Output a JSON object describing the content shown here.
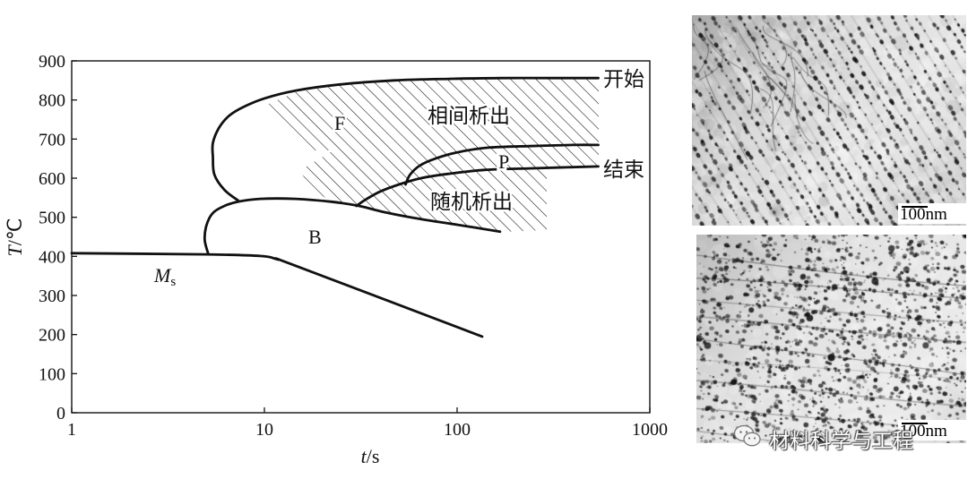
{
  "chart_data": {
    "type": "line",
    "xscale": "log",
    "xlim": [
      1,
      1000
    ],
    "ylim": [
      0,
      900
    ],
    "xticks": [
      1,
      10,
      100,
      1000
    ],
    "yticks": [
      0,
      100,
      200,
      300,
      400,
      500,
      600,
      700,
      800,
      900
    ],
    "grid": false,
    "xlabel": {
      "symbol": "t",
      "unit": "/s"
    },
    "ylabel": {
      "symbol": "T",
      "unit": "/℃"
    },
    "curves": [
      {
        "label": "开始",
        "points": [
          [
            7.3,
            543
          ],
          [
            6.2,
            570
          ],
          [
            5.5,
            609
          ],
          [
            5.4,
            655
          ],
          [
            5.4,
            690
          ],
          [
            5.8,
            728
          ],
          [
            6.5,
            758
          ],
          [
            7.7,
            781
          ],
          [
            10,
            804
          ],
          [
            14.5,
            824
          ],
          [
            25,
            840
          ],
          [
            47,
            850
          ],
          [
            90,
            854
          ],
          [
            170,
            856
          ],
          [
            325,
            856
          ],
          [
            540,
            856
          ]
        ]
      },
      {
        "label": "结束",
        "points": [
          [
            30,
            529
          ],
          [
            34,
            547
          ],
          [
            40,
            566
          ],
          [
            50,
            584
          ],
          [
            65,
            600
          ],
          [
            90,
            611
          ],
          [
            138,
            621
          ],
          [
            236,
            625
          ],
          [
            540,
            630
          ]
        ]
      },
      {
        "points": [
          [
            54,
            584
          ],
          [
            57,
            609
          ],
          [
            64,
            632
          ],
          [
            77,
            650
          ],
          [
            100,
            666
          ],
          [
            145,
            678
          ],
          [
            236,
            682
          ],
          [
            400,
            685
          ],
          [
            540,
            685
          ]
        ]
      },
      {
        "points": [
          [
            5.1,
            408
          ],
          [
            4.9,
            442
          ],
          [
            5.0,
            479
          ],
          [
            5.4,
            511
          ],
          [
            6.2,
            529
          ],
          [
            7.3,
            540
          ],
          [
            9.5,
            547
          ],
          [
            14.5,
            547
          ],
          [
            22,
            540
          ],
          [
            31,
            529
          ],
          [
            42,
            513
          ],
          [
            65,
            495
          ],
          [
            100,
            481
          ],
          [
            167,
            463
          ]
        ]
      },
      {
        "points": [
          [
            1,
            408
          ],
          [
            5,
            405
          ],
          [
            9.5,
            401
          ],
          [
            11.7,
            392
          ],
          [
            14.5,
            376
          ],
          [
            135,
            195
          ]
        ]
      }
    ],
    "region_labels": {
      "ferrite": "F",
      "interphase_precipitation": "相间析出",
      "pearlite": "P",
      "random_precipitation": "随机析出",
      "bainite": "B"
    },
    "ms_label": {
      "main": "M",
      "sub": "s"
    }
  },
  "micrographs": [
    {
      "scale_label": "100nm"
    },
    {
      "scale_label": "100nm"
    }
  ],
  "watermark": {
    "icon": "wechat-icon",
    "text": "材料科学与工程"
  }
}
